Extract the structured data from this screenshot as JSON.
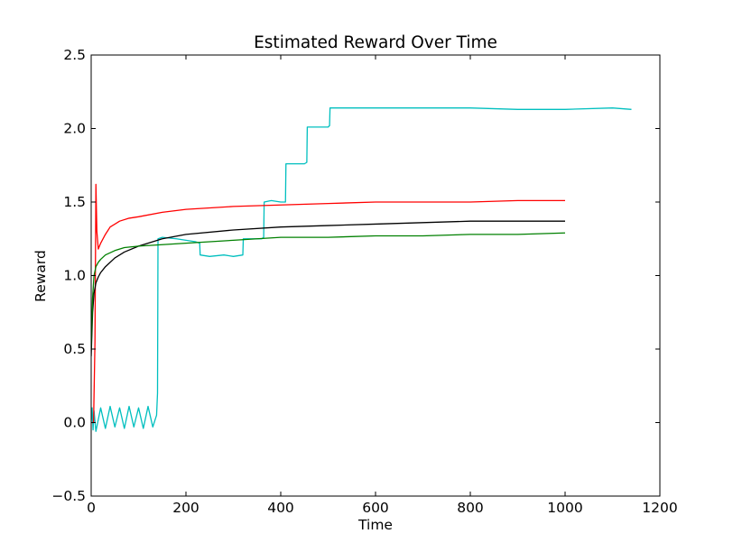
{
  "chart_data": {
    "type": "line",
    "title": "Estimated Reward Over Time",
    "xlabel": "Time",
    "ylabel": "Reward",
    "xlim": [
      0,
      1200
    ],
    "ylim": [
      -0.5,
      2.5
    ],
    "xticks": [
      0,
      200,
      400,
      600,
      800,
      1000,
      1200
    ],
    "yticks": [
      -0.5,
      0.0,
      0.5,
      1.0,
      1.5,
      2.0,
      2.5
    ],
    "xtick_labels": [
      "0",
      "200",
      "400",
      "600",
      "800",
      "1000",
      "1200"
    ],
    "ytick_labels": [
      "−0.5",
      "0.0",
      "0.5",
      "1.0",
      "1.5",
      "2.0",
      "2.5"
    ],
    "grid": false,
    "legend": "none",
    "series": [
      {
        "color": "#00bfbf",
        "x": [
          0,
          2,
          4,
          6,
          10,
          20,
          30,
          40,
          50,
          60,
          70,
          80,
          90,
          100,
          110,
          120,
          130,
          138,
          140,
          141,
          150,
          180,
          200,
          220,
          229,
          230,
          250,
          280,
          300,
          320,
          321,
          340,
          360,
          364,
          365,
          380,
          400,
          410,
          411,
          430,
          450,
          455,
          456,
          480,
          500,
          503,
          504,
          550,
          600,
          700,
          800,
          900,
          1000,
          1100,
          1140
        ],
        "y": [
          0.0,
          0.1,
          -0.05,
          0.08,
          -0.06,
          0.1,
          -0.04,
          0.11,
          -0.03,
          0.1,
          -0.04,
          0.11,
          -0.03,
          0.1,
          -0.04,
          0.11,
          -0.03,
          0.05,
          0.2,
          1.25,
          1.26,
          1.25,
          1.24,
          1.23,
          1.22,
          1.14,
          1.13,
          1.14,
          1.13,
          1.14,
          1.25,
          1.25,
          1.25,
          1.26,
          1.5,
          1.51,
          1.5,
          1.5,
          1.76,
          1.76,
          1.76,
          1.77,
          2.01,
          2.01,
          2.01,
          2.02,
          2.14,
          2.14,
          2.14,
          2.14,
          2.14,
          2.13,
          2.13,
          2.14,
          2.13
        ]
      },
      {
        "color": "#ff0000",
        "x": [
          0,
          5,
          8,
          10,
          12,
          15,
          20,
          30,
          40,
          60,
          80,
          100,
          150,
          200,
          300,
          400,
          500,
          600,
          700,
          800,
          900,
          1000
        ],
        "y": [
          0.0,
          0.0,
          0.55,
          1.62,
          1.3,
          1.18,
          1.22,
          1.28,
          1.33,
          1.37,
          1.39,
          1.4,
          1.43,
          1.45,
          1.47,
          1.48,
          1.49,
          1.5,
          1.5,
          1.5,
          1.51,
          1.51
        ]
      },
      {
        "color": "#000000",
        "x": [
          0,
          3,
          6,
          10,
          15,
          20,
          30,
          50,
          70,
          100,
          150,
          200,
          300,
          400,
          500,
          600,
          700,
          800,
          900,
          1000
        ],
        "y": [
          0.45,
          0.75,
          0.88,
          0.95,
          0.99,
          1.02,
          1.06,
          1.12,
          1.16,
          1.2,
          1.25,
          1.28,
          1.31,
          1.33,
          1.34,
          1.35,
          1.36,
          1.37,
          1.37,
          1.37
        ]
      },
      {
        "color": "#008000",
        "x": [
          0,
          3,
          6,
          10,
          15,
          20,
          30,
          50,
          70,
          100,
          150,
          200,
          300,
          400,
          500,
          600,
          700,
          800,
          900,
          1000
        ],
        "y": [
          0.5,
          0.85,
          1.0,
          1.06,
          1.09,
          1.11,
          1.14,
          1.17,
          1.19,
          1.2,
          1.21,
          1.22,
          1.24,
          1.26,
          1.26,
          1.27,
          1.27,
          1.28,
          1.28,
          1.29
        ]
      }
    ]
  }
}
